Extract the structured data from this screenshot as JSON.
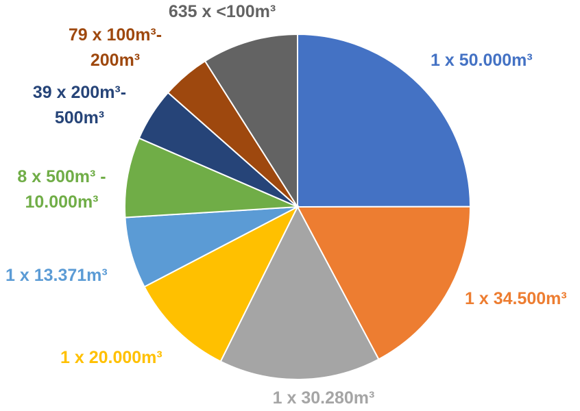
{
  "chart_data": {
    "type": "pie",
    "title": "",
    "slices": [
      {
        "label_lines": [
          "1 x 50.000m³"
        ],
        "value": 50000,
        "color": "#4472C4"
      },
      {
        "label_lines": [
          "1 x 34.500m³"
        ],
        "value": 34500,
        "color": "#ED7D31"
      },
      {
        "label_lines": [
          "1 x 30.280m³"
        ],
        "value": 30280,
        "color": "#A5A5A5"
      },
      {
        "label_lines": [
          "1 x 20.000m³"
        ],
        "value": 20000,
        "color": "#FFC000"
      },
      {
        "label_lines": [
          "1 x 13.371m³"
        ],
        "value": 13371,
        "color": "#5B9BD5"
      },
      {
        "label_lines": [
          "8 x 500m³ -",
          "10.000m³"
        ],
        "value": 15000,
        "color": "#70AD47"
      },
      {
        "label_lines": [
          "39 x 200m³-",
          "500m³"
        ],
        "value": 10000,
        "color": "#264478"
      },
      {
        "label_lines": [
          "79 x 100m³-",
          "200m³"
        ],
        "value": 9000,
        "color": "#9E480E"
      },
      {
        "label_lines": [
          "635 x <100m³"
        ],
        "value": 18000,
        "color": "#636363"
      }
    ],
    "legend": "none"
  }
}
